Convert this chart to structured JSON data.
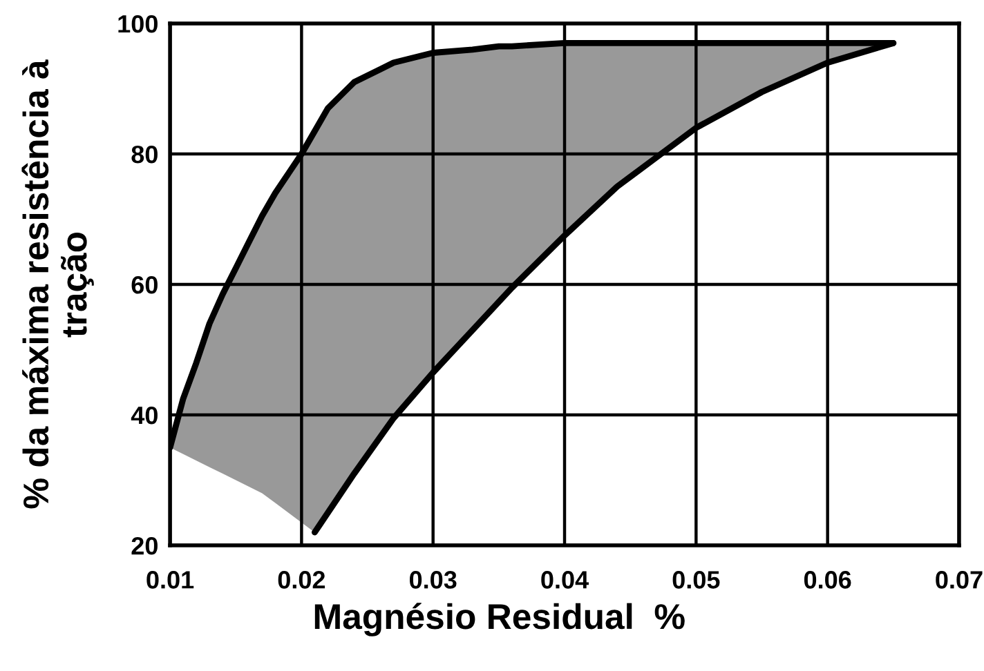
{
  "chart_data": {
    "type": "line",
    "xlabel": "Magnésio Residual  %",
    "ylabel": "% da máxima resistência à\ntração",
    "series": [
      {
        "type": "line",
        "color": "#000000",
        "x": [
          0.01,
          0.011,
          0.012,
          0.013,
          0.014,
          0.015,
          0.016,
          0.017,
          0.018,
          0.019,
          0.02,
          0.021,
          0.022,
          0.024,
          0.026,
          0.027,
          0.028,
          0.03,
          0.033,
          0.035,
          0.036,
          0.04,
          0.044,
          0.047,
          0.05,
          0.055,
          0.06,
          0.065
        ],
        "values": [
          35,
          42.5,
          48,
          54,
          58.5,
          62.5,
          66.5,
          70.5,
          74,
          77,
          80,
          83.5,
          87,
          91,
          93,
          94,
          94.5,
          95.5,
          96,
          96.5,
          96.5,
          97,
          97,
          97,
          97,
          97,
          97,
          97
        ],
        "lower": [
          35,
          34,
          33,
          32,
          31,
          30,
          29,
          28,
          26.5,
          25,
          23.5,
          22,
          25,
          31,
          36.5,
          39.5,
          42,
          46.5,
          53,
          57.5,
          59.5,
          67.5,
          75,
          79.5,
          84,
          89.5,
          94,
          97
        ],
        "upper": [
          35,
          42.5,
          48,
          54,
          58.5,
          62.5,
          66.5,
          70.5,
          74,
          77,
          80,
          83.5,
          87,
          91,
          93,
          94,
          94.5,
          95.5,
          96,
          96.5,
          96.5,
          97,
          97,
          97,
          97,
          97,
          97,
          97
        ]
      },
      {
        "type": "line",
        "color": "#000000",
        "x": [
          0.021,
          0.024,
          0.027,
          0.03,
          0.033,
          0.036,
          0.04,
          0.044,
          0.047,
          0.05,
          0.055,
          0.06,
          0.065
        ],
        "values": [
          22,
          31,
          39.5,
          46.5,
          53,
          59.5,
          67.5,
          75,
          79.5,
          84,
          89.5,
          94,
          97
        ]
      }
    ],
    "xlim": [
      0.01,
      0.07
    ],
    "xticks": [
      0.01,
      0.02,
      0.03,
      0.04,
      0.05,
      0.06,
      0.07
    ],
    "ylim": [
      20,
      100
    ],
    "yticks": [
      20,
      40,
      60,
      80,
      100
    ],
    "grid": true,
    "line_style": "solid",
    "marker": "none"
  }
}
